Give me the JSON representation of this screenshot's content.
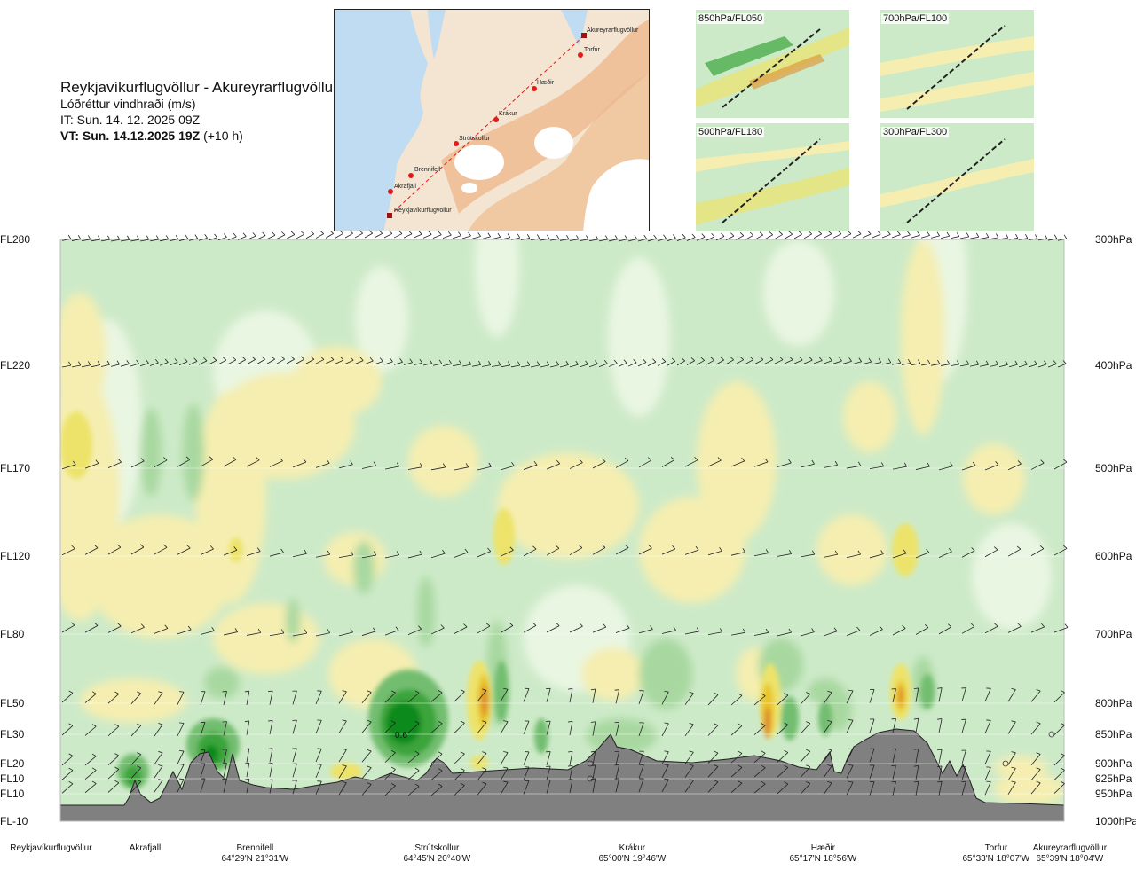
{
  "header": {
    "route": "Reykjavíkurflugvöllur - Akureyrarflugvöllur",
    "parameter": "Lóðréttur vindhraði (m/s)",
    "it": "IT: Sun. 14. 12. 2025 09Z",
    "vt_bold": "VT: Sun. 14.12.2025 19Z",
    "vt_offset": "(+10 h)"
  },
  "map": {
    "waypoints": [
      "Akureyrarflugvöllur",
      "Torfur",
      "Hæðir",
      "Krákur",
      "Strútskollur",
      "Brennifell",
      "Akrafjall",
      "Reykjavíkurflugvöllur"
    ],
    "colors": {
      "sea": "#bfdcf2",
      "land": "#f3e5d2",
      "high": "#eeb98f",
      "glacier": "#ffffff",
      "track": "#e21a1a"
    }
  },
  "thumbnails": [
    {
      "label": "850hPa/FL050"
    },
    {
      "label": "700hPa/FL100"
    },
    {
      "label": "500hPa/FL180"
    },
    {
      "label": "300hPa/FL300"
    }
  ],
  "chart_data": {
    "type": "heatmap",
    "title": "Lóðréttur vindhraði (m/s)",
    "levels_fl": [
      "FL280",
      "FL220",
      "FL170",
      "FL120",
      "FL80",
      "FL50",
      "FL30",
      "FL20",
      "FL10",
      "FL10",
      "FL-10"
    ],
    "levels_hpa": [
      "300hPa",
      "400hPa",
      "500hPa",
      "600hPa",
      "700hPa",
      "800hPa",
      "850hPa",
      "900hPa",
      "925hPa",
      "950hPa",
      "1000hPa"
    ],
    "pressure_values": [
      300,
      400,
      500,
      600,
      700,
      800,
      850,
      900,
      925,
      950,
      1000
    ],
    "locations": [
      {
        "name": "Reykjavíkurflugvöllur",
        "coord": ""
      },
      {
        "name": "Akrafjall",
        "coord": ""
      },
      {
        "name": "Brennifell",
        "coord": "64°29'N 21°31'W"
      },
      {
        "name": "Strútskollur",
        "coord": "64°45'N 20°40'W"
      },
      {
        "name": "Krákur",
        "coord": "65°00'N 19°46'W"
      },
      {
        "name": "Hæðir",
        "coord": "65°17'N 18°56'W"
      },
      {
        "name": "Torfur",
        "coord": "65°33'N 18°07'W"
      },
      {
        "name": "Akureyrarflugvöllur",
        "coord": "65°39'N 18°04'W"
      }
    ],
    "annotation": "0.6",
    "colors": {
      "background": "#cdeac8",
      "weak_down": "#e9f6e2",
      "weak_up": "#f5eeb0",
      "moderate_up": "#ede36a",
      "strong_up": "#e9c428",
      "very_strong_up": "#dd8d2e",
      "down1": "#a8d8a0",
      "down2": "#72bd6f",
      "down3": "#3ba43b",
      "down4": "#0e8a1f",
      "terrain": "#808080",
      "barb": "#222222"
    }
  }
}
